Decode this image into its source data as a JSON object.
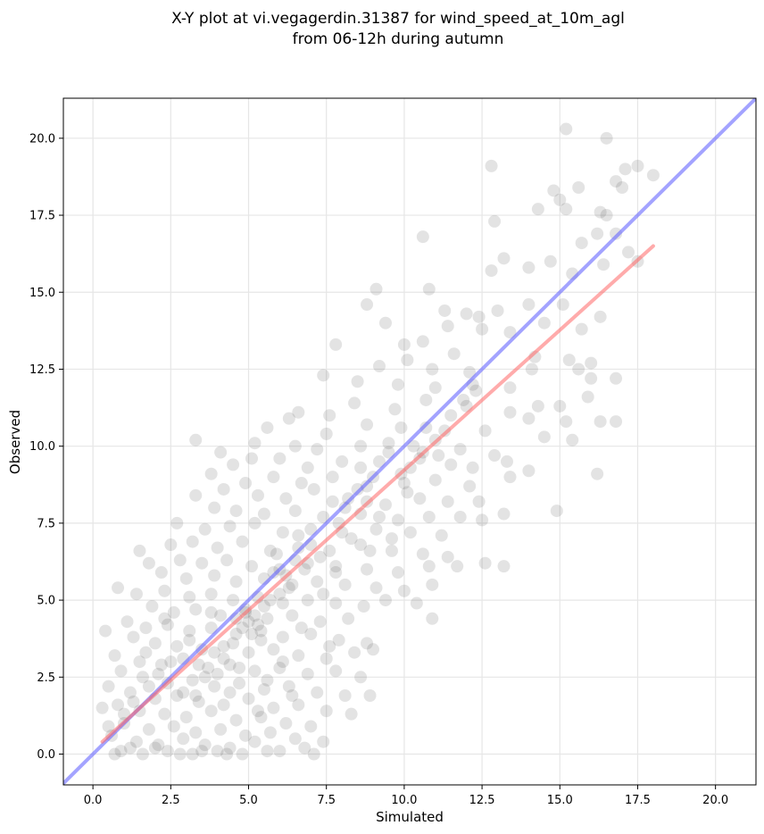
{
  "chart_data": {
    "type": "scatter",
    "title_line1": "X-Y plot at vi.vegagerdin.31387 for wind_speed_at_10m_agl",
    "title_line2": "from 06-12h during autumn",
    "xlabel": "Simulated",
    "ylabel": "Observed",
    "xlim": [
      -0.95,
      21.3
    ],
    "ylim": [
      -1.0,
      21.3
    ],
    "xticks": [
      0.0,
      2.5,
      5.0,
      7.5,
      10.0,
      12.5,
      15.0,
      17.5,
      20.0
    ],
    "yticks": [
      0.0,
      2.5,
      5.0,
      7.5,
      10.0,
      12.5,
      15.0,
      17.5,
      20.0
    ],
    "xtick_labels": [
      "0.0",
      "2.5",
      "5.0",
      "7.5",
      "10.0",
      "12.5",
      "15.0",
      "17.5",
      "20.0"
    ],
    "ytick_labels": [
      "0.0",
      "2.5",
      "5.0",
      "7.5",
      "10.0",
      "12.5",
      "15.0",
      "17.5",
      "20.0"
    ],
    "grid": true,
    "point_color": "#404040",
    "point_opacity": 0.15,
    "identity_line": {
      "color": "#6666ff",
      "from": [
        -0.95,
        -0.95
      ],
      "to": [
        21.3,
        21.3
      ]
    },
    "fit_line": {
      "color": "#ff6666",
      "from": [
        0.3,
        0.4
      ],
      "to": [
        18.0,
        16.5
      ]
    },
    "points": [
      [
        15.2,
        20.3
      ],
      [
        16.5,
        20.0
      ],
      [
        12.8,
        19.1
      ],
      [
        17.5,
        19.1
      ],
      [
        17.1,
        19.0
      ],
      [
        18.0,
        18.8
      ],
      [
        16.8,
        18.6
      ],
      [
        14.8,
        18.3
      ],
      [
        15.6,
        18.4
      ],
      [
        17.0,
        18.4
      ],
      [
        15.0,
        18.0
      ],
      [
        10.6,
        16.8
      ],
      [
        12.9,
        17.3
      ],
      [
        14.3,
        17.7
      ],
      [
        15.2,
        17.7
      ],
      [
        16.3,
        17.6
      ],
      [
        16.5,
        17.5
      ],
      [
        15.7,
        16.6
      ],
      [
        16.2,
        16.9
      ],
      [
        16.8,
        16.9
      ],
      [
        13.2,
        16.1
      ],
      [
        17.2,
        16.3
      ],
      [
        14.0,
        15.8
      ],
      [
        14.7,
        16.0
      ],
      [
        16.4,
        15.9
      ],
      [
        12.8,
        15.7
      ],
      [
        15.4,
        15.6
      ],
      [
        17.5,
        16.0
      ],
      [
        9.1,
        15.1
      ],
      [
        10.8,
        15.1
      ],
      [
        8.8,
        14.6
      ],
      [
        9.4,
        14.0
      ],
      [
        11.3,
        14.4
      ],
      [
        12.4,
        14.2
      ],
      [
        12.0,
        14.3
      ],
      [
        13.0,
        14.4
      ],
      [
        14.0,
        14.6
      ],
      [
        15.1,
        14.6
      ],
      [
        16.3,
        14.2
      ],
      [
        14.5,
        14.0
      ],
      [
        13.4,
        13.7
      ],
      [
        10.0,
        13.3
      ],
      [
        11.4,
        13.9
      ],
      [
        12.5,
        13.8
      ],
      [
        15.7,
        13.8
      ],
      [
        7.8,
        13.3
      ],
      [
        10.6,
        13.4
      ],
      [
        11.6,
        13.0
      ],
      [
        14.2,
        12.9
      ],
      [
        15.3,
        12.8
      ],
      [
        16.0,
        12.7
      ],
      [
        14.1,
        12.5
      ],
      [
        15.6,
        12.5
      ],
      [
        16.0,
        12.2
      ],
      [
        16.8,
        12.2
      ],
      [
        9.2,
        12.6
      ],
      [
        10.1,
        12.8
      ],
      [
        10.9,
        12.5
      ],
      [
        12.1,
        12.4
      ],
      [
        7.4,
        12.3
      ],
      [
        8.5,
        12.1
      ],
      [
        9.8,
        12.0
      ],
      [
        11.0,
        11.9
      ],
      [
        12.3,
        11.8
      ],
      [
        13.4,
        11.9
      ],
      [
        14.3,
        11.3
      ],
      [
        15.0,
        11.3
      ],
      [
        15.9,
        11.6
      ],
      [
        12.0,
        11.3
      ],
      [
        13.4,
        11.1
      ],
      [
        14.0,
        10.9
      ],
      [
        15.2,
        10.8
      ],
      [
        16.3,
        10.8
      ],
      [
        16.8,
        10.8
      ],
      [
        6.6,
        11.1
      ],
      [
        7.6,
        11.0
      ],
      [
        8.4,
        11.4
      ],
      [
        9.7,
        11.2
      ],
      [
        10.7,
        11.5
      ],
      [
        5.6,
        10.6
      ],
      [
        6.3,
        10.9
      ],
      [
        7.5,
        10.4
      ],
      [
        8.8,
        10.7
      ],
      [
        9.9,
        10.6
      ],
      [
        11.3,
        10.5
      ],
      [
        12.6,
        10.5
      ],
      [
        14.5,
        10.3
      ],
      [
        15.4,
        10.2
      ],
      [
        3.3,
        10.2
      ],
      [
        4.1,
        9.8
      ],
      [
        5.2,
        10.1
      ],
      [
        6.5,
        10.0
      ],
      [
        7.2,
        9.9
      ],
      [
        8.6,
        10.0
      ],
      [
        9.5,
        10.1
      ],
      [
        10.6,
        9.8
      ],
      [
        11.8,
        9.9
      ],
      [
        12.9,
        9.7
      ],
      [
        13.3,
        9.5
      ],
      [
        4.5,
        9.4
      ],
      [
        5.1,
        9.6
      ],
      [
        6.0,
        9.6
      ],
      [
        6.9,
        9.3
      ],
      [
        8.0,
        9.5
      ],
      [
        9.2,
        9.5
      ],
      [
        10.2,
        9.3
      ],
      [
        11.5,
        9.4
      ],
      [
        12.2,
        9.3
      ],
      [
        13.4,
        9.0
      ],
      [
        14.0,
        9.2
      ],
      [
        16.2,
        9.1
      ],
      [
        3.8,
        9.1
      ],
      [
        4.9,
        8.8
      ],
      [
        5.8,
        9.0
      ],
      [
        6.7,
        8.8
      ],
      [
        7.7,
        9.0
      ],
      [
        8.8,
        8.7
      ],
      [
        10.0,
        8.8
      ],
      [
        11.0,
        8.9
      ],
      [
        12.1,
        8.7
      ],
      [
        3.3,
        8.4
      ],
      [
        4.2,
        8.6
      ],
      [
        5.3,
        8.4
      ],
      [
        6.2,
        8.3
      ],
      [
        7.1,
        8.6
      ],
      [
        8.2,
        8.3
      ],
      [
        9.4,
        8.1
      ],
      [
        10.5,
        8.3
      ],
      [
        11.4,
        8.2
      ],
      [
        12.4,
        8.2
      ],
      [
        3.9,
        8.0
      ],
      [
        4.6,
        7.9
      ],
      [
        5.5,
        7.8
      ],
      [
        6.5,
        7.9
      ],
      [
        7.4,
        7.7
      ],
      [
        8.6,
        7.8
      ],
      [
        9.8,
        7.6
      ],
      [
        10.8,
        7.7
      ],
      [
        11.8,
        7.7
      ],
      [
        13.2,
        7.8
      ],
      [
        14.9,
        7.9
      ],
      [
        2.7,
        7.5
      ],
      [
        3.6,
        7.3
      ],
      [
        4.4,
        7.4
      ],
      [
        5.2,
        7.5
      ],
      [
        6.1,
        7.2
      ],
      [
        7.0,
        7.3
      ],
      [
        8.0,
        7.2
      ],
      [
        9.1,
        7.3
      ],
      [
        10.2,
        7.2
      ],
      [
        11.2,
        7.1
      ],
      [
        12.5,
        7.6
      ],
      [
        2.5,
        6.8
      ],
      [
        3.2,
        6.9
      ],
      [
        4.0,
        6.7
      ],
      [
        4.8,
        6.9
      ],
      [
        5.7,
        6.6
      ],
      [
        6.6,
        6.7
      ],
      [
        7.6,
        6.6
      ],
      [
        8.6,
        6.8
      ],
      [
        9.6,
        6.6
      ],
      [
        10.6,
        6.5
      ],
      [
        11.4,
        6.4
      ],
      [
        1.5,
        6.6
      ],
      [
        2.8,
        6.3
      ],
      [
        3.5,
        6.2
      ],
      [
        4.3,
        6.3
      ],
      [
        5.1,
        6.1
      ],
      [
        6.0,
        6.0
      ],
      [
        6.9,
        6.2
      ],
      [
        7.8,
        6.1
      ],
      [
        8.8,
        6.0
      ],
      [
        9.8,
        5.9
      ],
      [
        10.8,
        6.1
      ],
      [
        11.7,
        6.1
      ],
      [
        12.6,
        6.2
      ],
      [
        13.2,
        6.1
      ],
      [
        1.8,
        6.2
      ],
      [
        2.2,
        5.9
      ],
      [
        3.0,
        5.7
      ],
      [
        3.9,
        5.8
      ],
      [
        4.6,
        5.6
      ],
      [
        5.5,
        5.7
      ],
      [
        6.4,
        5.5
      ],
      [
        7.2,
        5.6
      ],
      [
        8.1,
        5.5
      ],
      [
        9.1,
        5.4
      ],
      [
        10.0,
        5.3
      ],
      [
        10.9,
        5.5
      ],
      [
        0.8,
        5.4
      ],
      [
        1.4,
        5.2
      ],
      [
        2.3,
        5.3
      ],
      [
        3.1,
        5.1
      ],
      [
        3.8,
        5.2
      ],
      [
        4.5,
        5.0
      ],
      [
        5.3,
        5.1
      ],
      [
        6.1,
        4.9
      ],
      [
        6.9,
        5.0
      ],
      [
        7.8,
        4.9
      ],
      [
        8.7,
        4.8
      ],
      [
        9.4,
        5.0
      ],
      [
        10.4,
        4.9
      ],
      [
        1.9,
        4.8
      ],
      [
        2.6,
        4.6
      ],
      [
        3.3,
        4.7
      ],
      [
        4.1,
        4.5
      ],
      [
        4.9,
        4.6
      ],
      [
        5.6,
        4.4
      ],
      [
        6.4,
        4.5
      ],
      [
        7.3,
        4.3
      ],
      [
        8.2,
        4.4
      ],
      [
        10.9,
        4.4
      ],
      [
        1.1,
        4.3
      ],
      [
        1.7,
        4.1
      ],
      [
        2.4,
        4.2
      ],
      [
        3.1,
        4.0
      ],
      [
        3.8,
        4.1
      ],
      [
        4.6,
        3.9
      ],
      [
        5.4,
        4.0
      ],
      [
        6.1,
        3.8
      ],
      [
        7.0,
        3.9
      ],
      [
        7.9,
        3.7
      ],
      [
        8.8,
        3.6
      ],
      [
        0.4,
        4.0
      ],
      [
        1.3,
        3.8
      ],
      [
        2.0,
        3.6
      ],
      [
        2.7,
        3.5
      ],
      [
        3.5,
        3.4
      ],
      [
        4.2,
        3.5
      ],
      [
        5.0,
        3.3
      ],
      [
        5.8,
        3.4
      ],
      [
        6.6,
        3.2
      ],
      [
        7.5,
        3.1
      ],
      [
        8.4,
        3.3
      ],
      [
        9.0,
        3.4
      ],
      [
        0.7,
        3.2
      ],
      [
        1.5,
        3.0
      ],
      [
        2.2,
        2.9
      ],
      [
        2.9,
        3.1
      ],
      [
        3.7,
        2.8
      ],
      [
        4.4,
        2.9
      ],
      [
        5.2,
        2.7
      ],
      [
        6.0,
        2.8
      ],
      [
        6.9,
        2.6
      ],
      [
        7.8,
        2.7
      ],
      [
        8.6,
        2.5
      ],
      [
        0.9,
        2.7
      ],
      [
        1.6,
        2.5
      ],
      [
        2.4,
        2.3
      ],
      [
        3.2,
        2.4
      ],
      [
        3.9,
        2.2
      ],
      [
        4.7,
        2.3
      ],
      [
        5.5,
        2.1
      ],
      [
        6.3,
        2.2
      ],
      [
        7.2,
        2.0
      ],
      [
        8.1,
        1.9
      ],
      [
        8.9,
        1.9
      ],
      [
        0.5,
        2.2
      ],
      [
        1.2,
        2.0
      ],
      [
        2.0,
        1.8
      ],
      [
        2.7,
        1.9
      ],
      [
        3.4,
        1.7
      ],
      [
        4.2,
        1.6
      ],
      [
        5.0,
        1.8
      ],
      [
        5.8,
        1.5
      ],
      [
        6.6,
        1.6
      ],
      [
        7.5,
        1.4
      ],
      [
        8.3,
        1.3
      ],
      [
        0.8,
        1.6
      ],
      [
        1.5,
        1.4
      ],
      [
        2.3,
        1.3
      ],
      [
        3.0,
        1.2
      ],
      [
        3.8,
        1.4
      ],
      [
        4.6,
        1.1
      ],
      [
        5.4,
        1.2
      ],
      [
        6.2,
        1.0
      ],
      [
        7.0,
        0.9
      ],
      [
        0.3,
        1.5
      ],
      [
        1.0,
        1.0
      ],
      [
        1.8,
        0.8
      ],
      [
        2.6,
        0.9
      ],
      [
        3.3,
        0.7
      ],
      [
        4.1,
        0.8
      ],
      [
        4.9,
        0.6
      ],
      [
        5.7,
        0.7
      ],
      [
        6.5,
        0.5
      ],
      [
        7.4,
        0.4
      ],
      [
        0.6,
        0.6
      ],
      [
        1.4,
        0.4
      ],
      [
        2.1,
        0.3
      ],
      [
        2.9,
        0.5
      ],
      [
        3.6,
        0.3
      ],
      [
        4.4,
        0.2
      ],
      [
        5.2,
        0.4
      ],
      [
        6.0,
        0.1
      ],
      [
        6.8,
        0.2
      ],
      [
        0.9,
        0.1
      ],
      [
        1.6,
        0.0
      ],
      [
        2.4,
        0.1
      ],
      [
        3.2,
        0.0
      ],
      [
        4.0,
        0.1
      ],
      [
        4.8,
        0.0
      ],
      [
        5.6,
        0.1
      ],
      [
        7.1,
        0.0
      ],
      [
        1.2,
        0.2
      ],
      [
        2.0,
        0.2
      ],
      [
        2.8,
        0.0
      ],
      [
        3.5,
        0.1
      ],
      [
        4.3,
        0.0
      ],
      [
        0.7,
        0.0
      ],
      [
        5.0,
        4.3
      ],
      [
        5.2,
        4.5
      ],
      [
        4.8,
        4.1
      ],
      [
        5.5,
        4.8
      ],
      [
        5.1,
        3.9
      ],
      [
        4.6,
        4.4
      ],
      [
        5.3,
        4.2
      ],
      [
        5.7,
        5.0
      ],
      [
        4.9,
        4.7
      ],
      [
        5.4,
        3.7
      ],
      [
        6.2,
        5.8
      ],
      [
        6.5,
        6.3
      ],
      [
        6.0,
        5.2
      ],
      [
        6.8,
        6.0
      ],
      [
        5.9,
        6.5
      ],
      [
        6.3,
        5.4
      ],
      [
        7.0,
        6.8
      ],
      [
        6.6,
        7.1
      ],
      [
        7.3,
        6.4
      ],
      [
        5.8,
        5.9
      ],
      [
        4.2,
        3.1
      ],
      [
        4.5,
        3.6
      ],
      [
        3.9,
        3.3
      ],
      [
        4.0,
        2.6
      ],
      [
        4.4,
        2.0
      ],
      [
        3.6,
        2.5
      ],
      [
        3.3,
        1.9
      ],
      [
        4.7,
        2.8
      ],
      [
        3.1,
        3.7
      ],
      [
        3.8,
        4.6
      ],
      [
        8.1,
        8.0
      ],
      [
        8.5,
        8.6
      ],
      [
        7.9,
        7.5
      ],
      [
        8.8,
        8.2
      ],
      [
        9.0,
        9.0
      ],
      [
        8.3,
        7.0
      ],
      [
        9.5,
        9.8
      ],
      [
        9.9,
        9.1
      ],
      [
        10.3,
        10.0
      ],
      [
        10.7,
        10.6
      ],
      [
        11.0,
        10.2
      ],
      [
        11.5,
        11.0
      ],
      [
        11.9,
        11.5
      ],
      [
        12.2,
        12.0
      ],
      [
        9.2,
        7.7
      ],
      [
        10.1,
        8.5
      ],
      [
        10.5,
        9.6
      ],
      [
        11.1,
        9.7
      ],
      [
        8.6,
        9.3
      ],
      [
        7.7,
        8.2
      ],
      [
        2.1,
        2.6
      ],
      [
        1.8,
        2.2
      ],
      [
        2.5,
        3.0
      ],
      [
        1.3,
        1.7
      ],
      [
        1.0,
        1.3
      ],
      [
        0.5,
        0.9
      ],
      [
        2.9,
        2.0
      ],
      [
        3.4,
        2.9
      ],
      [
        1.7,
        3.3
      ],
      [
        2.3,
        4.4
      ],
      [
        6.7,
        4.1
      ],
      [
        7.4,
        5.2
      ],
      [
        6.1,
        3.0
      ],
      [
        5.6,
        2.4
      ],
      [
        7.8,
        5.9
      ],
      [
        8.9,
        6.6
      ],
      [
        9.6,
        7.0
      ],
      [
        6.4,
        1.9
      ],
      [
        5.3,
        1.4
      ],
      [
        7.6,
        3.5
      ]
    ]
  }
}
